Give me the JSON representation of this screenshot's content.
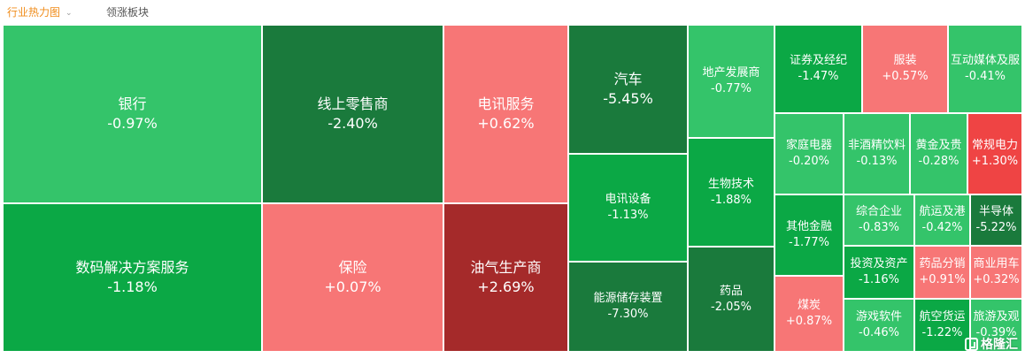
{
  "tabs": {
    "active": "行业热力图",
    "inactive": "领涨板块"
  },
  "watermark": "格隆汇",
  "colors": {
    "up_light": "#f77676",
    "up_strong": "#ef4444",
    "up_dark": "#a52a2a",
    "down_light": "#34c46a",
    "down_mid": "#0ba845",
    "down_dark": "#1a7a3c"
  },
  "chart_data": {
    "type": "heatmap",
    "unit": "%",
    "items": [
      {
        "name": "银行",
        "change": -0.97
      },
      {
        "name": "数码解决方案服务",
        "change": -1.18
      },
      {
        "name": "线上零售商",
        "change": -2.4
      },
      {
        "name": "保险",
        "change": 0.07
      },
      {
        "name": "电讯服务",
        "change": 0.62
      },
      {
        "name": "油气生产商",
        "change": 2.69
      },
      {
        "name": "汽车",
        "change": -5.45
      },
      {
        "name": "电讯设备",
        "change": -1.13
      },
      {
        "name": "能源储存装置",
        "change": -7.3
      },
      {
        "name": "地产发展商",
        "change": -0.77
      },
      {
        "name": "生物技术",
        "change": -1.88
      },
      {
        "name": "药品",
        "change": -2.05
      },
      {
        "name": "证券及经纪",
        "change": -1.47
      },
      {
        "name": "服装",
        "change": 0.57
      },
      {
        "name": "互动媒体及服",
        "change": -0.41
      },
      {
        "name": "家庭电器",
        "change": -0.2
      },
      {
        "name": "非酒精饮料",
        "change": -0.13
      },
      {
        "name": "黄金及贵",
        "change": -0.28
      },
      {
        "name": "常规电力",
        "change": 1.3
      },
      {
        "name": "其他金融",
        "change": -1.77
      },
      {
        "name": "综合企业",
        "change": -0.83
      },
      {
        "name": "航运及港",
        "change": -0.42
      },
      {
        "name": "半导体",
        "change": -5.22
      },
      {
        "name": "投资及资产",
        "change": -1.16
      },
      {
        "name": "药品分销",
        "change": 0.91
      },
      {
        "name": "商业用车",
        "change": 0.32
      },
      {
        "name": "煤炭",
        "change": 0.87
      },
      {
        "name": "游戏软件",
        "change": -0.46
      },
      {
        "name": "航空货运",
        "change": -1.22
      },
      {
        "name": "旅游及观",
        "change": -0.39
      }
    ]
  }
}
